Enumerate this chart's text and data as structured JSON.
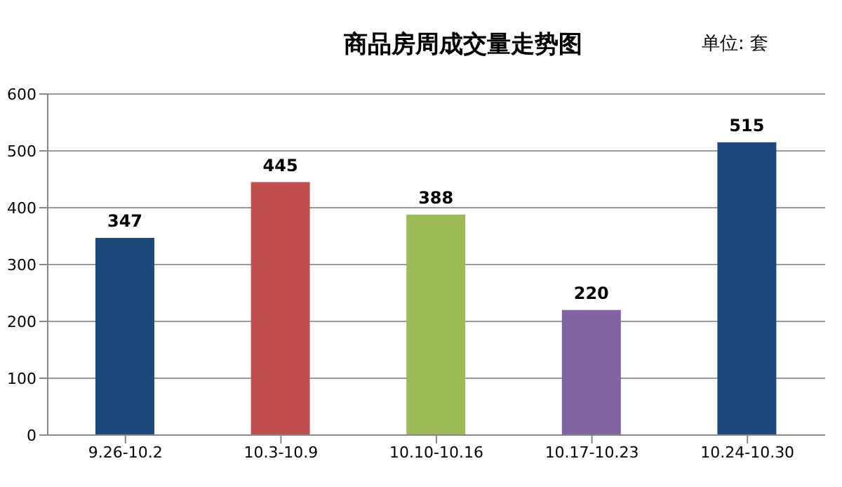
{
  "chart_data": {
    "type": "bar",
    "title": "商品房周成交量走势图",
    "annotations": [
      "单位: 套"
    ],
    "categories": [
      "9.26-10.2",
      "10.3-10.9",
      "10.10-10.16",
      "10.17-10.23",
      "10.24-10.30"
    ],
    "values": [
      347,
      445,
      388,
      220,
      515
    ],
    "colors": [
      "#1f497d",
      "#c0504d",
      "#9bbb59",
      "#8064a2",
      "#1f497d"
    ],
    "ylim": [
      0,
      600
    ],
    "yticks": [
      0,
      100,
      200,
      300,
      400,
      500,
      600
    ],
    "grid": "y",
    "data_labels": true,
    "legend": false
  }
}
